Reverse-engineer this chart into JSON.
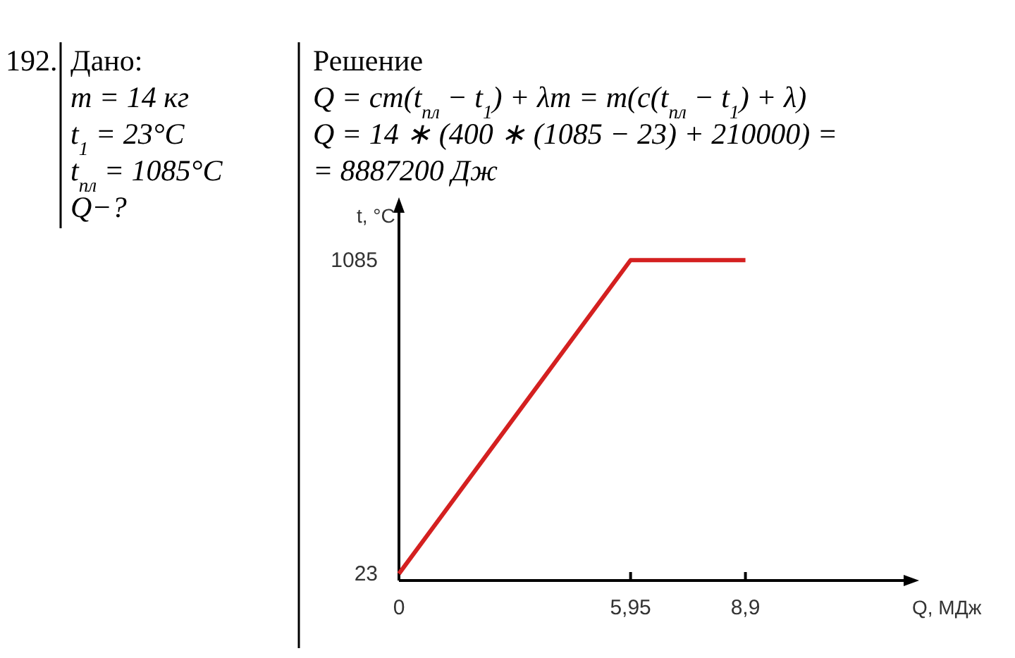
{
  "chart_data": {
    "type": "line",
    "xlabel": "Q, МДж",
    "ylabel": "t, °C",
    "x": [
      0,
      5.95,
      8.9
    ],
    "series": [
      {
        "color": "#d42020",
        "values": [
          23,
          1085,
          1085
        ]
      }
    ],
    "xlim": [
      0,
      13
    ],
    "ylim": [
      0,
      1250
    ],
    "xticks": [
      0,
      {
        "value": 5.95,
        "label": "5,95"
      },
      {
        "value": 8.9,
        "label": "8,9"
      }
    ],
    "yticks": [
      23,
      1085
    ],
    "grid": false,
    "marker": "none",
    "line_style": "solid",
    "annotations": [
      "192.",
      "Дано:",
      "m = 14 кг",
      "t$_{1}$ = 23°C",
      "t$_{пл}$ = 1085°C",
      "Q−?",
      "Решение",
      "Q = cm(t$_{пл}$ − t$_{1}$) + λm = m(c(t$_{пл}$ − t$_{1}$) + λ)",
      "Q = 14 ∗ (400 ∗ (1085 − 23) + 210000) =",
      "= 8887200 Дж"
    ]
  }
}
